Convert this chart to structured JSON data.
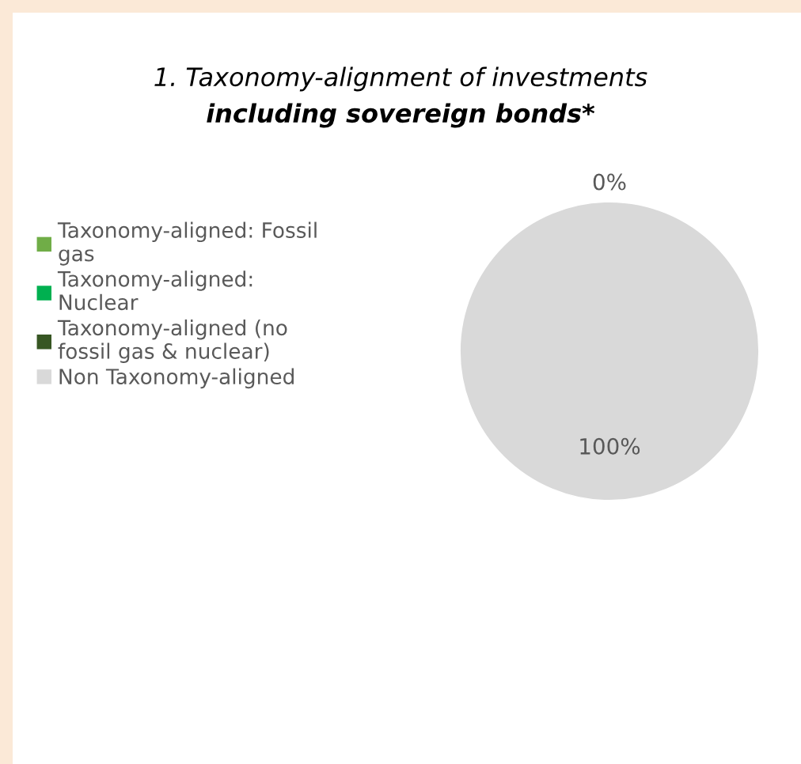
{
  "chart_data": {
    "type": "pie",
    "title": "1. Taxonomy-alignment of investments",
    "subtitle": "including sovereign bonds*",
    "categories": [
      "Taxonomy-aligned: Fossil gas",
      "Taxonomy-aligned: Nuclear",
      "Taxonomy-aligned (no fossil gas & nuclear)",
      "Non Taxonomy-aligned"
    ],
    "values": [
      0,
      0,
      0,
      100
    ],
    "colors": [
      "#70ad47",
      "#00b050",
      "#375623",
      "#d9d9d9"
    ],
    "value_labels": [
      "0%",
      null,
      null,
      "100%"
    ],
    "legend": "left"
  }
}
